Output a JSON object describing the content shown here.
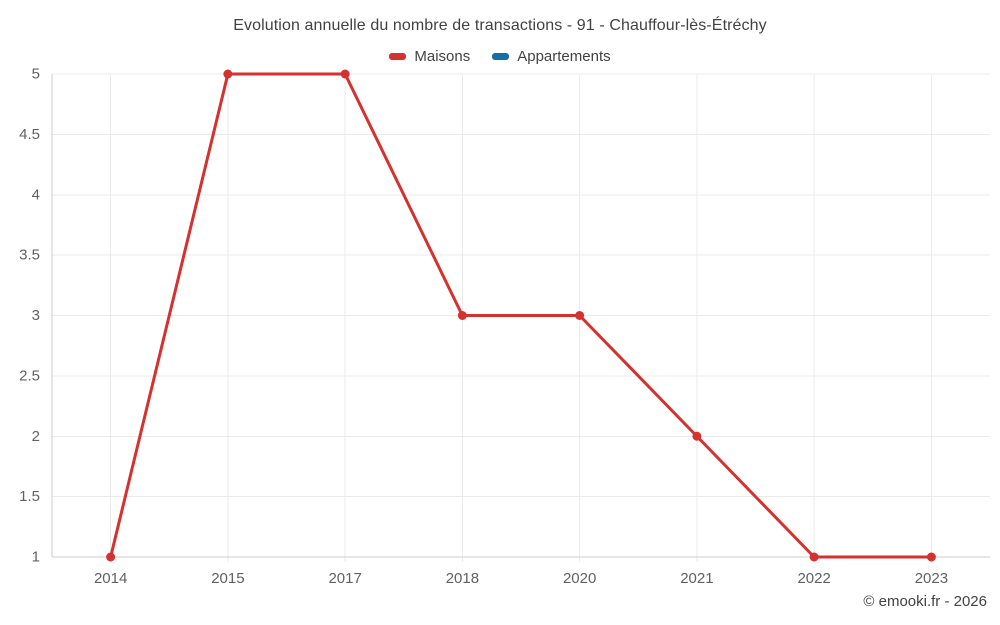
{
  "header": {
    "title": "Evolution annuelle du nombre de transactions - 91 - Chauffour-lès-Étréchy"
  },
  "footer": {
    "copyright": "© emooki.fr - 2026"
  },
  "chart_data": {
    "type": "line",
    "title": "Evolution annuelle du nombre de transactions - 91 - Chauffour-lès-Étréchy",
    "categories": [
      "2014",
      "2015",
      "2017",
      "2018",
      "2020",
      "2021",
      "2022",
      "2023"
    ],
    "series": [
      {
        "name": "Maisons",
        "color": "#d5312f",
        "values": [
          1,
          5,
          5,
          3,
          3,
          2,
          1,
          1
        ]
      },
      {
        "name": "Appartements",
        "color": "#1270a5",
        "values": []
      }
    ],
    "xlabel": "",
    "ylabel": "",
    "ylim": [
      1,
      5
    ],
    "yticks": [
      1,
      1.5,
      2,
      2.5,
      3,
      3.5,
      4,
      4.5,
      5
    ],
    "grid": true,
    "legend_position": "top",
    "colors": {
      "grid": "#ebebeb",
      "axis": "#cccccc",
      "tick_text": "#616161",
      "title_text": "#424242"
    }
  }
}
